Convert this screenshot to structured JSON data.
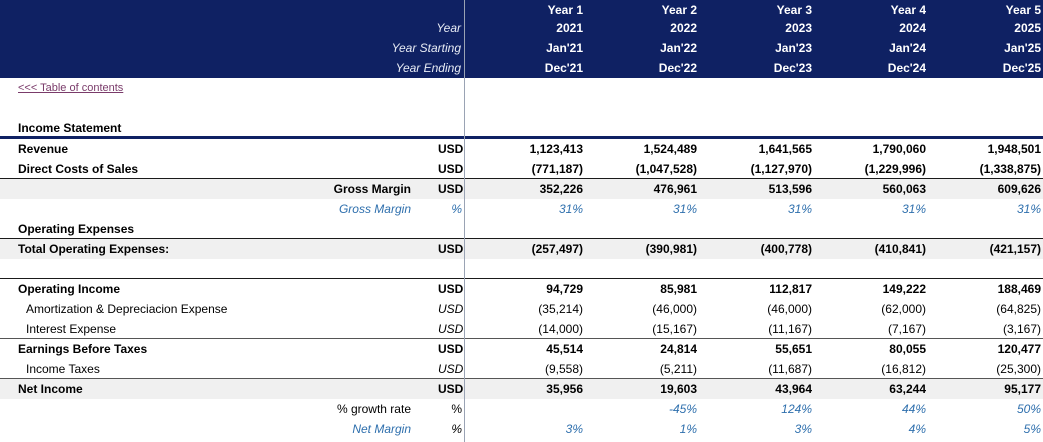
{
  "header": {
    "labels": [
      "Year",
      "Year Starting",
      "Year Ending"
    ],
    "years": [
      {
        "name": "Year 1",
        "year": "2021",
        "start": "Jan'21",
        "end": "Dec'21"
      },
      {
        "name": "Year 2",
        "year": "2022",
        "start": "Jan'22",
        "end": "Dec'22"
      },
      {
        "name": "Year 3",
        "year": "2023",
        "start": "Jan'23",
        "end": "Dec'23"
      },
      {
        "name": "Year 4",
        "year": "2024",
        "start": "Jan'24",
        "end": "Dec'24"
      },
      {
        "name": "Year 5",
        "year": "2025",
        "start": "Jan'25",
        "end": "Dec'25"
      }
    ]
  },
  "toc_link": "<<< Table of contents",
  "section_title": "Income Statement",
  "colors": {
    "header_bg": "#0f2163",
    "accent_blue": "#2e6fad",
    "link": "#7a3b6a"
  },
  "rows": [
    {
      "name": "Revenue",
      "unit": "USD",
      "values": [
        "1,123,413",
        "1,524,489",
        "1,641,565",
        "1,790,060",
        "1,948,501"
      ]
    },
    {
      "name": "Direct Costs of Sales",
      "unit": "USD",
      "values": [
        "(771,187)",
        "(1,047,528)",
        "(1,127,970)",
        "(1,229,996)",
        "(1,338,875)"
      ]
    },
    {
      "name": "Gross Margin",
      "unit": "USD",
      "values": [
        "352,226",
        "476,961",
        "513,596",
        "560,063",
        "609,626"
      ]
    },
    {
      "name": "Gross Margin",
      "unit": "%",
      "values": [
        "31%",
        "31%",
        "31%",
        "31%",
        "31%"
      ]
    },
    {
      "name": "Operating Expenses",
      "unit": "",
      "values": []
    },
    {
      "name": "Total Operating Expenses:",
      "unit": "USD",
      "values": [
        "(257,497)",
        "(390,981)",
        "(400,778)",
        "(410,841)",
        "(421,157)"
      ]
    },
    {
      "name": "Operating Income",
      "unit": "USD",
      "values": [
        "94,729",
        "85,981",
        "112,817",
        "149,222",
        "188,469"
      ]
    },
    {
      "name": "Amortization & Depreciacion Expense",
      "unit": "USD",
      "values": [
        "(35,214)",
        "(46,000)",
        "(46,000)",
        "(62,000)",
        "(64,825)"
      ]
    },
    {
      "name": "Interest Expense",
      "unit": "USD",
      "values": [
        "(14,000)",
        "(15,167)",
        "(11,167)",
        "(7,167)",
        "(3,167)"
      ]
    },
    {
      "name": "Earnings Before Taxes",
      "unit": "USD",
      "values": [
        "45,514",
        "24,814",
        "55,651",
        "80,055",
        "120,477"
      ]
    },
    {
      "name": "Income Taxes",
      "unit": "USD",
      "values": [
        "(9,558)",
        "(5,211)",
        "(11,687)",
        "(16,812)",
        "(25,300)"
      ]
    },
    {
      "name": "Net Income",
      "unit": "USD",
      "values": [
        "35,956",
        "19,603",
        "43,964",
        "63,244",
        "95,177"
      ]
    },
    {
      "name": "% growth rate",
      "unit": "%",
      "values": [
        "",
        "-45%",
        "124%",
        "44%",
        "50%"
      ]
    },
    {
      "name": "Net Margin",
      "unit": "%",
      "values": [
        "3%",
        "1%",
        "3%",
        "4%",
        "5%"
      ]
    }
  ]
}
